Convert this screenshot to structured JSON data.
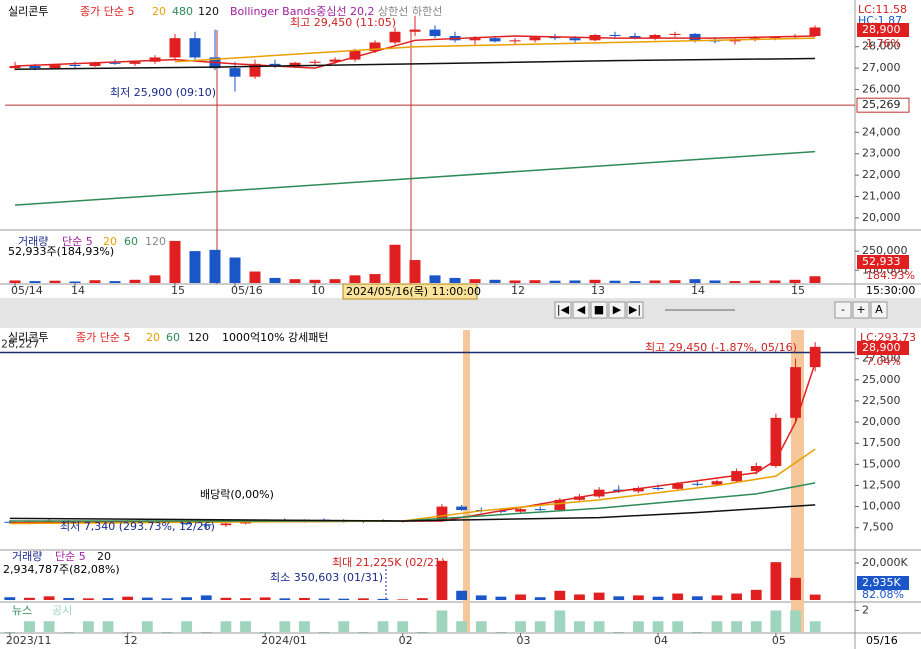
{
  "chart_data": [
    {
      "type": "candlestick",
      "title": "실리콘투",
      "indicators": [
        "Bollinger Bands중심선 20,2",
        "상한선",
        "하한선"
      ],
      "stats": [
        "LC:11.58",
        "HC:1.87"
      ],
      "badges": [
        "28,900",
        "1.76%"
      ],
      "annotations": [
        "최고 29,450 (11:05)",
        "최저 25,900 (09:10)"
      ],
      "hline": {
        "value": 25269,
        "label": "25,269"
      },
      "cursor": "2024/05/16(목) 11:00:00",
      "time": "15:30:00",
      "up_color": "#e02020",
      "down_color": "#1a56c8",
      "categories": [
        "05/14",
        null,
        null,
        "14",
        null,
        null,
        null,
        null,
        "15",
        null,
        null,
        "05/16",
        null,
        null,
        null,
        "10",
        null,
        null,
        null,
        null,
        null,
        null,
        null,
        null,
        null,
        "12",
        null,
        null,
        null,
        "13",
        null,
        null,
        null,
        null,
        "14",
        null,
        null,
        null,
        null,
        "15",
        null
      ],
      "open": [
        27000,
        27100,
        27000,
        27150,
        27100,
        27250,
        27200,
        27300,
        27500,
        28400,
        27500,
        27000,
        26600,
        27200,
        27100,
        27250,
        27300,
        27400,
        27800,
        28200,
        28700,
        28800,
        28500,
        28300,
        28400,
        28250,
        28300,
        28450,
        28400,
        28300,
        28550,
        28500,
        28400,
        28550,
        28600,
        28300,
        28250,
        28350,
        28400,
        28450,
        28500
      ],
      "high": [
        27300,
        27200,
        27200,
        27300,
        27300,
        27400,
        27350,
        27600,
        28600,
        28700,
        28800,
        27300,
        27400,
        27400,
        27300,
        27400,
        27500,
        27900,
        28300,
        28900,
        29450,
        29000,
        28700,
        28500,
        28500,
        28400,
        28500,
        28600,
        28500,
        28600,
        28700,
        28650,
        28600,
        28700,
        28650,
        28450,
        28400,
        28500,
        28500,
        28600,
        29000
      ],
      "low": [
        26900,
        26900,
        26950,
        27000,
        27050,
        27150,
        27100,
        27200,
        27400,
        27300,
        26900,
        25900,
        26500,
        27000,
        27000,
        27100,
        27200,
        27300,
        27700,
        28100,
        28500,
        28400,
        28200,
        28100,
        28200,
        28100,
        28200,
        28300,
        28200,
        28250,
        28400,
        28350,
        28300,
        28450,
        28200,
        28150,
        28100,
        28250,
        28300,
        28350,
        28450
      ],
      "close": [
        27100,
        27000,
        27150,
        27100,
        27250,
        27200,
        27300,
        27500,
        28400,
        27500,
        27000,
        26600,
        27200,
        27100,
        27250,
        27300,
        27400,
        27800,
        28200,
        28700,
        28800,
        28500,
        28300,
        28400,
        28250,
        28300,
        28450,
        28400,
        28300,
        28550,
        28500,
        28400,
        28550,
        28600,
        28300,
        28250,
        28350,
        28400,
        28450,
        28500,
        28900
      ],
      "series": [
        {
          "name": "종가 단순 5",
          "color": "#e02020",
          "x": [
            0,
            8,
            11,
            15,
            20,
            25,
            30,
            35,
            40
          ],
          "values": [
            27100,
            27400,
            27200,
            27000,
            28300,
            28500,
            28400,
            28400,
            28500
          ]
        },
        {
          "name": "20",
          "color": "#e8a000",
          "x": [
            8,
            20,
            40
          ],
          "values": [
            27300,
            28000,
            28400
          ]
        },
        {
          "name": "480",
          "color": "#2e8b57",
          "x": [
            0,
            40
          ],
          "values": [
            20600,
            23100
          ]
        },
        {
          "name": "120",
          "color": "#111111",
          "x": [
            0,
            10,
            20,
            30,
            40
          ],
          "values": [
            26950,
            27050,
            27200,
            27350,
            27450
          ]
        }
      ],
      "ylim": [
        19530,
        29950
      ],
      "yticks": [
        {
          "value": 20000,
          "label": "20,000"
        },
        {
          "value": 21000,
          "label": "21,000"
        },
        {
          "value": 22000,
          "label": "22,000"
        },
        {
          "value": 23000,
          "label": "23,000"
        },
        {
          "value": 24000,
          "label": "24,000"
        },
        {
          "value": 26000,
          "label": "26,000"
        },
        {
          "value": 27000,
          "label": "27,000"
        },
        {
          "value": 28000,
          "label": "28,000"
        }
      ]
    },
    {
      "type": "bar",
      "title": "거래량",
      "indicators": [
        "단순 5",
        "20",
        "60",
        "120"
      ],
      "summary": "52,933주(184,93%)",
      "badges": [
        "52,933",
        "184.93%"
      ],
      "values": [
        20000,
        15000,
        18000,
        12000,
        22000,
        15000,
        25000,
        60000,
        330000,
        250000,
        260000,
        200000,
        90000,
        40000,
        30000,
        25000,
        30000,
        60000,
        70000,
        300000,
        180000,
        60000,
        40000,
        30000,
        25000,
        20000,
        22000,
        18000,
        20000,
        25000,
        18000,
        15000,
        20000,
        22000,
        30000,
        20000,
        15000,
        18000,
        20000,
        25000,
        52933
      ],
      "ylim": [
        0,
        400000
      ],
      "yticks": [
        {
          "value": 100000,
          "label": "100,000"
        },
        {
          "value": 250000,
          "label": "250,000"
        }
      ]
    },
    {
      "type": "candlestick",
      "title": "실리콘투",
      "indicators": [
        "1000억10% 강세패턴"
      ],
      "stats": [
        "LC:293.73"
      ],
      "badges": [
        "28,900",
        "7.04%"
      ],
      "annotations": [
        "최고 29,450 (-1.87%, 05/16)",
        "배당락(0,00%)",
        "최저 7,340 (293.73%, 12/26)"
      ],
      "hline": {
        "value": 28227,
        "label": "28,227"
      },
      "end_label": "05/16",
      "up_color": "#e02020",
      "down_color": "#1a56c8",
      "categories": [
        "2023/11",
        null,
        null,
        null,
        null,
        null,
        "12",
        null,
        null,
        null,
        null,
        null,
        null,
        "2024/01",
        null,
        null,
        null,
        null,
        null,
        null,
        "02",
        null,
        null,
        null,
        null,
        null,
        "03",
        null,
        null,
        null,
        null,
        null,
        null,
        "04",
        null,
        null,
        null,
        null,
        null,
        "05",
        null,
        null
      ],
      "open": [
        8200,
        8100,
        8200,
        8300,
        8050,
        8150,
        8100,
        8350,
        8300,
        8100,
        7900,
        7800,
        8000,
        8250,
        8400,
        8300,
        8450,
        8300,
        8200,
        8350,
        8250,
        8300,
        8400,
        10000,
        9600,
        9500,
        9400,
        9700,
        9600,
        10800,
        11200,
        12000,
        11800,
        12200,
        12100,
        12700,
        12600,
        13000,
        14200,
        14800,
        20500,
        26500
      ],
      "high": [
        8400,
        8300,
        8500,
        8400,
        8200,
        8300,
        8400,
        8500,
        8400,
        8300,
        8000,
        8100,
        8300,
        8500,
        8600,
        8500,
        8600,
        8500,
        8400,
        8500,
        8400,
        8500,
        10300,
        10200,
        9900,
        9700,
        9800,
        10000,
        11000,
        11500,
        12300,
        12500,
        12400,
        12600,
        12900,
        13000,
        13200,
        14500,
        15200,
        21000,
        27500,
        29450
      ],
      "low": [
        8000,
        7900,
        8100,
        8000,
        7900,
        8000,
        8050,
        8200,
        8000,
        7800,
        7340,
        7600,
        7900,
        8100,
        8200,
        8100,
        8200,
        8100,
        8050,
        8150,
        8100,
        8200,
        8300,
        9500,
        9300,
        9200,
        9300,
        9500,
        9500,
        10600,
        11000,
        11600,
        11600,
        11900,
        12000,
        12400,
        12500,
        12900,
        13800,
        14600,
        20000,
        26000
      ],
      "close": [
        8100,
        8200,
        8300,
        8050,
        8150,
        8100,
        8350,
        8300,
        8100,
        7900,
        7800,
        8000,
        8250,
        8400,
        8300,
        8450,
        8300,
        8200,
        8350,
        8250,
        8300,
        8400,
        10000,
        9600,
        9500,
        9400,
        9700,
        9600,
        10800,
        11200,
        12000,
        11800,
        12200,
        12100,
        12700,
        12600,
        13000,
        14200,
        14800,
        20500,
        26500,
        28900
      ],
      "series": [
        {
          "name": "종가 단순 5",
          "color": "#e02020",
          "x": [
            0,
            22,
            30,
            38,
            39,
            40,
            41
          ],
          "values": [
            8100,
            8300,
            11500,
            14000,
            15500,
            20000,
            27000
          ]
        },
        {
          "name": "20",
          "color": "#e8a000",
          "x": [
            0,
            20,
            24,
            30,
            36,
            39,
            41
          ],
          "values": [
            8000,
            8300,
            9500,
            10800,
            12500,
            13600,
            16800
          ]
        },
        {
          "name": "60",
          "color": "#2e8b57",
          "x": [
            0,
            20,
            30,
            38,
            41
          ],
          "values": [
            8300,
            8300,
            9800,
            11500,
            12800
          ]
        },
        {
          "name": "120",
          "color": "#111111",
          "x": [
            0,
            20,
            30,
            35,
            41
          ],
          "values": [
            8600,
            8300,
            8700,
            9300,
            10200
          ]
        }
      ],
      "ylim": [
        5100,
        30300
      ],
      "yticks": [
        {
          "value": 7500,
          "label": "7,500"
        },
        {
          "value": 10000,
          "label": "10,000"
        },
        {
          "value": 12500,
          "label": "12,500"
        },
        {
          "value": 15000,
          "label": "15,000"
        },
        {
          "value": 17500,
          "label": "17,500"
        },
        {
          "value": 20000,
          "label": "20,000"
        },
        {
          "value": 22500,
          "label": "22,500"
        },
        {
          "value": 25000,
          "label": "25,000"
        },
        {
          "value": 27500,
          "label": "27,500"
        }
      ]
    },
    {
      "type": "bar",
      "title": "거래량",
      "indicators": [
        "단순 5",
        "20"
      ],
      "summary": "2,934,787주(82,08%)",
      "badges": [
        "2,935K",
        "82.08%"
      ],
      "annotations": [
        "최대 21,225K (02/21)",
        "최소 350,603 (01/31)"
      ],
      "values": [
        1500000,
        1200000,
        2000000,
        1100000,
        900000,
        1000000,
        1800000,
        1300000,
        900000,
        1500000,
        2500000,
        1200000,
        1000000,
        1400000,
        900000,
        1100000,
        800000,
        700000,
        900000,
        600000,
        350603,
        1000000,
        21225000,
        5000000,
        2500000,
        1800000,
        3000000,
        1500000,
        5000000,
        3000000,
        4000000,
        2000000,
        2500000,
        1800000,
        3500000,
        2000000,
        2500000,
        3500000,
        5500000,
        20500000,
        12000000,
        2934787
      ],
      "ylim": [
        0,
        26000000
      ],
      "yticks": [
        {
          "value": 20000000,
          "label": "20,000K"
        }
      ]
    },
    {
      "type": "bar",
      "title": "뉴스",
      "indicators": [
        "공시"
      ],
      "color": "#9fd4bf",
      "values": [
        0,
        1,
        1,
        0,
        1,
        1,
        0,
        1,
        0,
        1,
        0,
        1,
        1,
        0,
        1,
        1,
        0,
        1,
        0,
        1,
        1,
        0,
        2,
        1,
        1,
        0,
        1,
        1,
        2,
        1,
        1,
        0,
        1,
        1,
        1,
        0,
        1,
        1,
        1,
        2,
        2,
        1
      ],
      "ylim": [
        0,
        2.6
      ],
      "yticks": [
        2
      ]
    }
  ],
  "toolbar": [
    "|◀",
    "◀",
    "■",
    "▶",
    "▶|",
    "-",
    "+",
    "A"
  ]
}
